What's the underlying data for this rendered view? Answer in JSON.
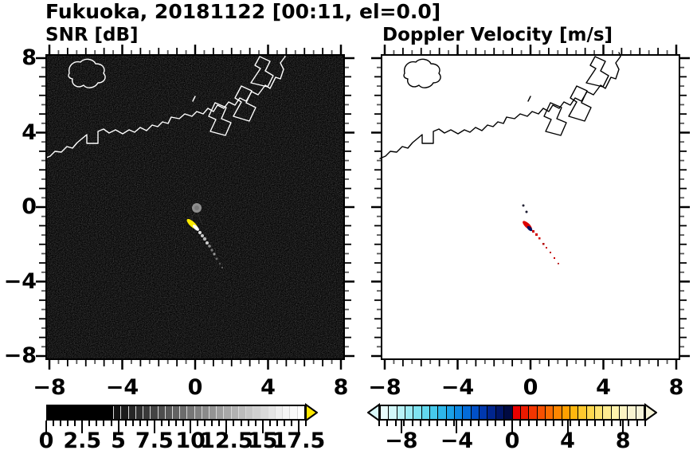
{
  "title": "Fukuoka, 20181122 [00:11, el=0.0]",
  "panels": [
    {
      "title": "SNR [dB]"
    },
    {
      "title": "Doppler Velocity [m/s]"
    }
  ],
  "axes": {
    "range": [
      -8,
      8
    ],
    "minor_step": 0.5,
    "major_step": 4,
    "x_tick_labels": [
      [
        "−8",
        -8
      ],
      [
        "−4",
        -4
      ],
      [
        "0",
        0
      ],
      [
        "4",
        4
      ],
      [
        "8",
        8
      ]
    ],
    "y_tick_labels": [
      [
        "8",
        8
      ],
      [
        "4",
        4
      ],
      [
        "0",
        0
      ],
      [
        "−4",
        -4
      ],
      [
        "−8",
        -8
      ]
    ]
  },
  "snr_colorbar": {
    "range": [
      0,
      18
    ],
    "minor_step": 0.5,
    "tick_labels": [
      [
        "0",
        0
      ],
      [
        "2.5",
        2.5
      ],
      [
        "5",
        5
      ],
      [
        "7.5",
        7.5
      ],
      [
        "10",
        10
      ],
      [
        "12.5",
        12.5
      ],
      [
        "15",
        15
      ],
      [
        "17.5",
        17.5
      ]
    ],
    "over_arrow_color": "#ffe800",
    "segments": [
      "#000000",
      "#000000",
      "#000000",
      "#000000",
      "#000000",
      "#000000",
      "#000000",
      "#000000",
      "#000000",
      "#000000",
      "#121212",
      "#1c1c1c",
      "#262626",
      "#303030",
      "#3a3a3a",
      "#444444",
      "#4e4e4e",
      "#585858",
      "#626262",
      "#6c6c6c",
      "#767676",
      "#808080",
      "#8a8a8a",
      "#949494",
      "#9e9e9e",
      "#a8a8a8",
      "#b2b2b2",
      "#bcbcbc",
      "#c6c6c6",
      "#d0d0d0",
      "#dadada",
      "#e4e4e4",
      "#eeeeee",
      "#f4f4f4",
      "#fafafa",
      "#ffffff"
    ]
  },
  "vel_colorbar": {
    "range": [
      -9.6,
      9.6
    ],
    "minor_step": 0.6,
    "tick_labels": [
      [
        "−8",
        -8
      ],
      [
        "−4",
        -4
      ],
      [
        "0",
        0
      ],
      [
        "4",
        4
      ],
      [
        "8",
        8
      ]
    ],
    "under_arrow_color": "#daf9fa",
    "over_arrow_color": "#f6f3d6",
    "segments": [
      "#e8fdfd",
      "#d2f8fa",
      "#b8f2f7",
      "#9cebf4",
      "#7fe3f1",
      "#62d8ee",
      "#46c9ec",
      "#2eb7ea",
      "#1ba1e7",
      "#0d88e2",
      "#046cd8",
      "#0150c8",
      "#0038ae",
      "#00258e",
      "#001568",
      "#000a42",
      "#e60000",
      "#ec1a00",
      "#f23500",
      "#f75000",
      "#fb6b00",
      "#fe8600",
      "#ffa000",
      "#ffb70e",
      "#ffc92e",
      "#ffd84f",
      "#ffe370",
      "#ffec90",
      "#fff2ac",
      "#fbf3c2",
      "#f8f3d0",
      "#f6f3d8"
    ]
  },
  "chart_data": [
    {
      "type": "heatmap",
      "title": "SNR [dB]",
      "xlim": [
        -8,
        8
      ],
      "ylim": [
        -8,
        8
      ],
      "x_ticks": [
        -8,
        -4,
        0,
        4,
        8
      ],
      "y_ticks": [
        8,
        4,
        0,
        -4,
        -8
      ],
      "minor_tick_step": 0.5,
      "background": "near-zero dB speckle noise (black with faint gray texture)",
      "colorbar": {
        "range_labeled": [
          0,
          17.5
        ],
        "colormap": "grayscale black to white",
        "over_range": "yellow arrow"
      },
      "features": [
        "white coastline of bay crossing upper third of map",
        "island outline centered near (-5.6, 7.0)",
        "angular port pier outlines between x=1.5 and x=4.5, y=4.5 to 8",
        "gray radar disk at origin (0.0, 0.0)",
        "bright yellow echo streak from (-0.4, -0.7) to (0.2, -1.2)",
        "gray/white echo trail continuing to about (1.3, -3.0)"
      ]
    },
    {
      "type": "heatmap",
      "title": "Doppler Velocity [m/s]",
      "xlim": [
        -8,
        8
      ],
      "ylim": [
        -8,
        8
      ],
      "x_ticks": [
        -8,
        -4,
        0,
        4,
        8
      ],
      "y_ticks": [
        8,
        4,
        0,
        -4,
        -8
      ],
      "minor_tick_step": 0.5,
      "background": "white (no velocity data except echo)",
      "colorbar": {
        "range_labeled": [
          -8,
          8
        ],
        "full_range": [
          -9.6,
          9.6
        ],
        "colormap": "cyan-blue-navy negative, red-orange-pale-yellow positive",
        "under_range": "pale cyan arrow",
        "over_range": "pale yellow arrow"
      },
      "features": [
        "black coastline identical to SNR panel",
        "red echo streak (positive velocity) from (-0.4, -0.7) to (0.2, -1.2)",
        "few navy pixels (negative velocity) adjacent to streak near (-0.1, -0.95)",
        "sparse red specks trailing to (1.3, -3.0)",
        "two tiny dark specks near (-0.3, 0.3) and (-0.1, 0.0)"
      ]
    }
  ]
}
